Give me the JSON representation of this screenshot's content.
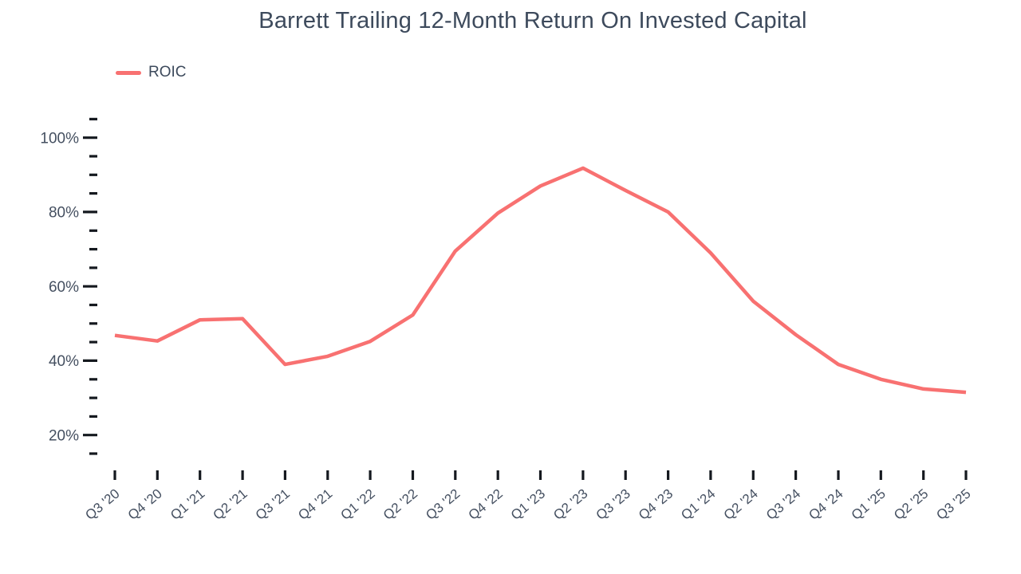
{
  "title": "Barrett Trailing 12-Month Return On Invested Capital",
  "legend": {
    "items": [
      {
        "label": "ROIC",
        "color": "#f87171"
      }
    ]
  },
  "colors": {
    "background": "#ffffff",
    "line": "#f87171",
    "text": "#3d4a5c",
    "axis_label": "#455061",
    "tick_mark": "#15191f"
  },
  "chart_data": {
    "type": "line",
    "title": "Barrett Trailing 12-Month Return On Invested Capital",
    "xlabel": "",
    "ylabel": "",
    "legend_position": "top-left",
    "grid": false,
    "categories": [
      "Q3 '20",
      "Q4 '20",
      "Q1 '21",
      "Q2 '21",
      "Q3 '21",
      "Q4 '21",
      "Q1 '22",
      "Q2 '22",
      "Q3 '22",
      "Q4 '22",
      "Q1 '23",
      "Q2 '23",
      "Q3 '23",
      "Q4 '23",
      "Q1 '24",
      "Q2 '24",
      "Q3 '24",
      "Q4 '24",
      "Q1 '25",
      "Q2 '25",
      "Q3 '25"
    ],
    "series": [
      {
        "name": "ROIC",
        "values": [
          46.8,
          45.3,
          51.0,
          51.3,
          39.0,
          41.2,
          45.2,
          52.3,
          69.5,
          79.7,
          87.0,
          91.8,
          85.8,
          80.0,
          69.0,
          56.0,
          47.0,
          39.0,
          35.0,
          32.4,
          31.5
        ]
      }
    ],
    "y_axis": {
      "unit": "percent",
      "major_tick_values": [
        100,
        80,
        60,
        40,
        20
      ],
      "major_tick_labels": [
        "100%",
        "80%",
        "60%",
        "40%",
        "20%"
      ],
      "minor_tick_step": 5,
      "minor_tick_range": [
        15,
        105
      ]
    },
    "ylim": [
      13,
      107
    ]
  }
}
